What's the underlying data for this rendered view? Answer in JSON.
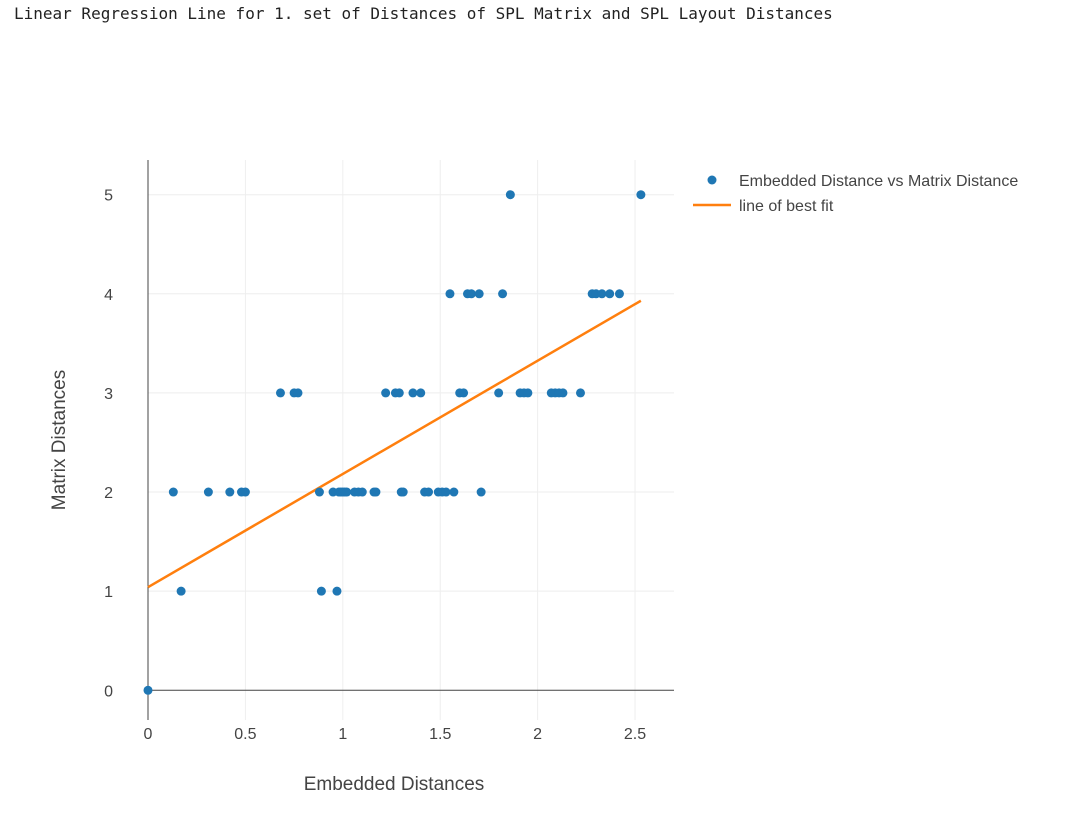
{
  "title": "Linear Regression Line for 1. set of Distances of SPL Matrix and SPL Layout Distances",
  "colors": {
    "points": "#1f77b4",
    "line": "#ff7f0e",
    "grid": "#eeeeee",
    "axis": "#444444"
  },
  "chart_data": {
    "type": "scatter",
    "title": "Linear Regression Line for 1. set of Distances of SPL Matrix and SPL Layout Distances",
    "xlabel": "Embedded Distances",
    "ylabel": "Matrix Distances",
    "xlim": [
      0,
      2.7
    ],
    "ylim": [
      -0.3,
      5.35
    ],
    "xticks": [
      0,
      0.5,
      1,
      1.5,
      2,
      2.5
    ],
    "xtick_labels": [
      "0",
      "0.5",
      "1",
      "1.5",
      "2",
      "2.5"
    ],
    "yticks": [
      0,
      1,
      2,
      3,
      4,
      5
    ],
    "ytick_labels": [
      "0",
      "1",
      "2",
      "3",
      "4",
      "5"
    ],
    "grid": true,
    "legend_position": "top-right-outside",
    "series": [
      {
        "name": "Embedded Distance vs Matrix Distance",
        "mode": "markers",
        "x": [
          0,
          0.17,
          0.13,
          0.31,
          0.42,
          0.48,
          0.5,
          0.68,
          0.75,
          0.77,
          0.88,
          0.89,
          0.95,
          0.97,
          0.98,
          0.99,
          1.0,
          1.01,
          1.02,
          1.06,
          1.08,
          1.1,
          1.16,
          1.17,
          1.22,
          1.27,
          1.29,
          1.3,
          1.31,
          1.36,
          1.4,
          1.42,
          1.44,
          1.49,
          1.51,
          1.53,
          1.55,
          1.57,
          1.6,
          1.62,
          1.64,
          1.66,
          1.7,
          1.71,
          1.8,
          1.82,
          1.86,
          1.91,
          1.93,
          1.95,
          2.07,
          2.09,
          2.11,
          2.13,
          2.22,
          2.28,
          2.3,
          2.33,
          2.37,
          2.42,
          2.53
        ],
        "y": [
          0,
          1,
          2,
          2,
          2,
          2,
          2,
          3,
          3,
          3,
          2,
          1,
          2,
          1,
          2,
          2,
          2,
          2,
          2,
          2,
          2,
          2,
          2,
          2,
          3,
          3,
          3,
          2,
          2,
          3,
          3,
          2,
          2,
          2,
          2,
          2,
          4,
          2,
          3,
          3,
          4,
          4,
          4,
          2,
          3,
          4,
          5,
          3,
          3,
          3,
          3,
          3,
          3,
          3,
          3,
          4,
          4,
          4,
          4,
          4,
          5
        ]
      },
      {
        "name": "line of best fit",
        "mode": "lines",
        "x": [
          0,
          2.53
        ],
        "y": [
          1.04,
          3.93
        ]
      }
    ]
  }
}
